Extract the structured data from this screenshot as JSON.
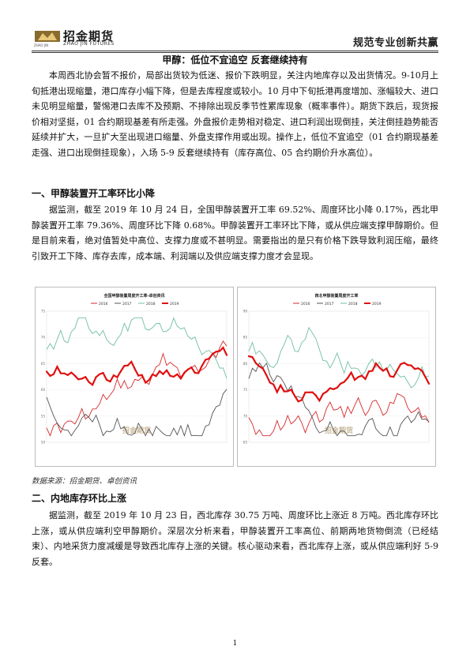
{
  "header": {
    "logo_cn": "招金期货",
    "logo_en": "ZHAO JIN FUTURES",
    "logo_en_small": "ZHAO JIN",
    "slogan": "规范专业创新共赢"
  },
  "title": "甲醇：低位不宜追空   反套继续持有",
  "intro": "本周西北协会暂不报价，局部出货较为低迷、报价下跌明显，关注内地库存以及出货情况。9-10月上旬抵港出现缩量，港口库存小幅下降，但是去库程度或较小。10 月中下旬抵港再度增加、涨幅较大、进口未见明显缩量，警惕港口去库不及预期、不排除出现反季节性累库现象（概率事件）。期货下跌后，现货报价相对坚挺，01 合约期现基差有所走强。外盘报价走势相对稳定、进口利润出现倒挂，关注倒挂趋势能否延续并扩大，一旦扩大至出现进口缩量、外盘支撑作用或出现。操作上，低位不宜追空（01 合约期现基差走强、进口出现倒挂现象），入场 5-9 反套继续持有（库存高位、05 合约期价升水高位）。",
  "section1": {
    "heading": "一、甲醇装置开工率环比小降",
    "body": "据监测，截至 2019 年 10 月 24 日，全国甲醇装置开工率 69.52%、周度环比小降 0.17%，西北甲醇装置开工率 79.36%、周度环比下降 0.68%。甲醇装置开工率环比下降，或从供应端支撑甲醇期价。但是目前来看，绝对值暂处中高位、支撑力度或不甚明显。需要指出的是只有价格下跌导致利润压缩，最终引致开工下降、库存去库，成本端、利润端以及供应端支撑力度才会显现。"
  },
  "charts": {
    "left_title": "全国甲醇装置周度开工率-卓创资讯",
    "right_title": "西北甲醇装置周度开工率",
    "legend": [
      "2016",
      "2017",
      "2018",
      "2019"
    ],
    "left_yticks": [
      "75",
      "70",
      "65",
      "60",
      "55",
      "50"
    ],
    "right_yticks": [
      "90",
      "85",
      "80",
      "75",
      "70",
      "65"
    ],
    "watermark": "招金期货",
    "colors": {
      "2016": "#d62728",
      "2017": "#555555",
      "2018": "#6fbf9f",
      "2019": "#e01010"
    }
  },
  "source": "数据来源：招金期货、卓创资讯",
  "section2": {
    "heading": "二、内地库存环比上涨",
    "body": "据监测，截至 2019 年 10 月 23 日，西北库存 30.75 万吨、周度环比上涨近 8 万吨。西北库存环比上涨，或从供应端利空甲醇期价。深层次分析来看，甲醇装置开工率高位、前期两地货物倒流（已经结束）、内地采货力度减缓是导致西北库存上涨的关键。核心驱动来看，西北库存上涨，或从供应端利好 5-9 反套。"
  },
  "page_number": "1"
}
